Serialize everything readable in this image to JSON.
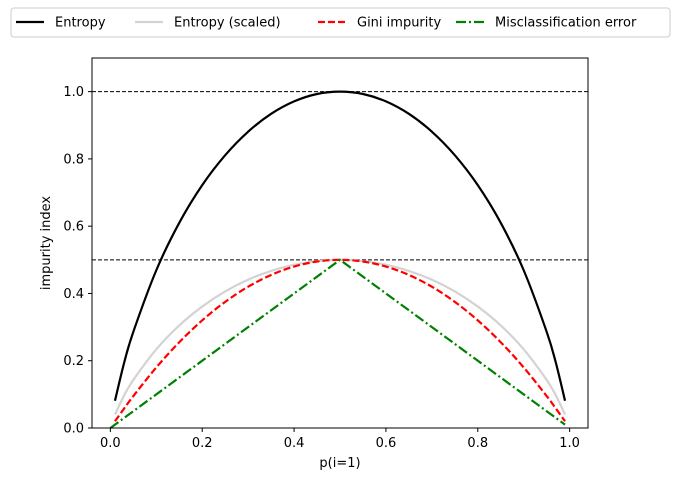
{
  "chart_data": {
    "type": "line",
    "title": "",
    "xlabel": "p(i=1)",
    "ylabel": "impurity index",
    "xlim": [
      -0.04,
      1.04
    ],
    "ylim": [
      0.0,
      1.1
    ],
    "x_ticks": [
      {
        "value": 0.0,
        "label": "0.0"
      },
      {
        "value": 0.2,
        "label": "0.2"
      },
      {
        "value": 0.4,
        "label": "0.4"
      },
      {
        "value": 0.6,
        "label": "0.6"
      },
      {
        "value": 0.8,
        "label": "0.8"
      },
      {
        "value": 1.0,
        "label": "1.0"
      }
    ],
    "y_ticks": [
      {
        "value": 0.0,
        "label": "0.0"
      },
      {
        "value": 0.2,
        "label": "0.2"
      },
      {
        "value": 0.4,
        "label": "0.4"
      },
      {
        "value": 0.6,
        "label": "0.6"
      },
      {
        "value": 0.8,
        "label": "0.8"
      },
      {
        "value": 1.0,
        "label": "1.0"
      }
    ],
    "grid": false,
    "legend_placement": "top, outside plot, one row",
    "reference_lines": [
      {
        "y": 1.0,
        "color": "#000000",
        "style": "dashed"
      },
      {
        "y": 0.5,
        "color": "#000000",
        "style": "dashed"
      }
    ],
    "series": [
      {
        "name": "Entropy",
        "color": "#000000",
        "style": "solid",
        "x": [
          0.01,
          0.03,
          0.05,
          0.1,
          0.15,
          0.2,
          0.25,
          0.3,
          0.35,
          0.4,
          0.45,
          0.5,
          0.55,
          0.6,
          0.65,
          0.7,
          0.75,
          0.8,
          0.85,
          0.9,
          0.95,
          0.97,
          0.99
        ],
        "y": [
          0.081,
          0.194,
          0.286,
          0.469,
          0.61,
          0.722,
          0.811,
          0.881,
          0.934,
          0.971,
          0.993,
          1.0,
          0.993,
          0.971,
          0.934,
          0.881,
          0.811,
          0.722,
          0.61,
          0.469,
          0.286,
          0.194,
          0.081
        ]
      },
      {
        "name": "Entropy (scaled)",
        "color": "#d3d3d3",
        "style": "solid",
        "x": [
          0.01,
          0.03,
          0.05,
          0.1,
          0.15,
          0.2,
          0.25,
          0.3,
          0.35,
          0.4,
          0.45,
          0.5,
          0.55,
          0.6,
          0.65,
          0.7,
          0.75,
          0.8,
          0.85,
          0.9,
          0.95,
          0.97,
          0.99
        ],
        "y": [
          0.04,
          0.097,
          0.143,
          0.234,
          0.305,
          0.361,
          0.406,
          0.441,
          0.467,
          0.485,
          0.496,
          0.5,
          0.496,
          0.485,
          0.467,
          0.441,
          0.406,
          0.361,
          0.305,
          0.234,
          0.143,
          0.097,
          0.04
        ]
      },
      {
        "name": "Gini impurity",
        "color": "#ff0000",
        "style": "dashed",
        "x": [
          0.01,
          0.03,
          0.05,
          0.1,
          0.15,
          0.2,
          0.25,
          0.3,
          0.35,
          0.4,
          0.45,
          0.5,
          0.55,
          0.6,
          0.65,
          0.7,
          0.75,
          0.8,
          0.85,
          0.9,
          0.95,
          0.97,
          0.99
        ],
        "y": [
          0.02,
          0.058,
          0.095,
          0.18,
          0.255,
          0.32,
          0.375,
          0.42,
          0.455,
          0.48,
          0.495,
          0.5,
          0.495,
          0.48,
          0.455,
          0.42,
          0.375,
          0.32,
          0.255,
          0.18,
          0.095,
          0.058,
          0.02
        ]
      },
      {
        "name": "Misclassification error",
        "color": "#008000",
        "style": "dashdot",
        "x": [
          0.0,
          0.5,
          0.99
        ],
        "y": [
          0.0,
          0.5,
          0.01
        ]
      }
    ]
  }
}
